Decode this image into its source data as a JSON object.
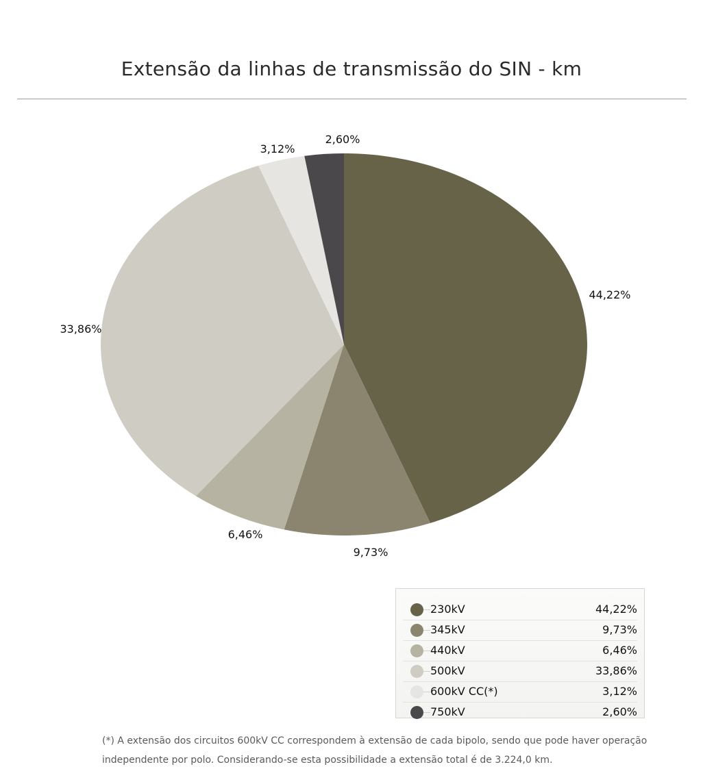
{
  "chart_data": {
    "type": "pie",
    "title": "Extensão da linhas de transmissão do SIN - km",
    "categories": [
      "230kV",
      "345kV",
      "440kV",
      "500kV",
      "600kV CC(*)",
      "750kV"
    ],
    "values": [
      44.22,
      9.73,
      6.46,
      33.86,
      3.12,
      2.6
    ],
    "value_labels": [
      "44,22%",
      "9,73%",
      "6,46%",
      "33,86%",
      "3,12%",
      "2,60%"
    ],
    "colors": [
      "#676349",
      "#8b8570",
      "#b6b3a2",
      "#cfccc4",
      "#e6e5e1",
      "#4a484b"
    ],
    "legend_placement": "bottom-right"
  },
  "footnote": {
    "line1": "(*) A extensão dos circuitos 600kV CC correspondem à extensão de cada bipolo, sendo que pode haver operação",
    "line2": "independente por polo. Considerando-se esta possibilidade a extensão total é de 3.224,0 km."
  }
}
